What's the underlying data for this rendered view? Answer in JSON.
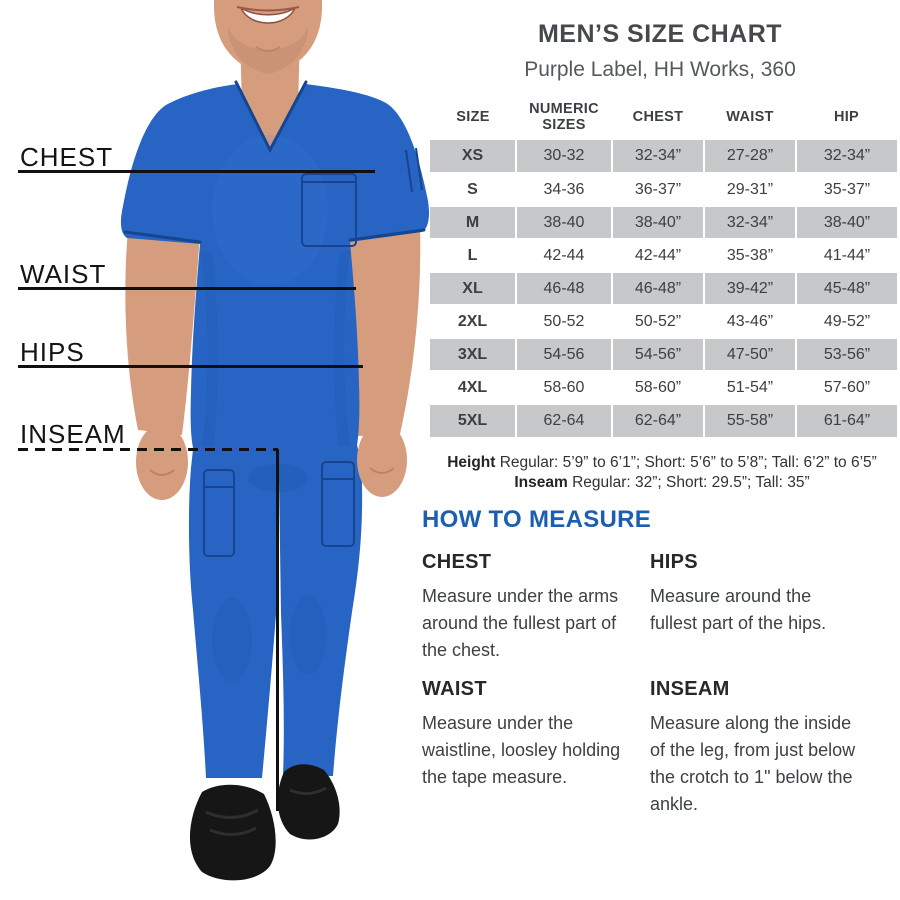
{
  "page": {
    "title": "MEN’S SIZE CHART",
    "subtitle": "Purple Label, HH Works, 360"
  },
  "measurement_labels": {
    "chest": "CHEST",
    "waist": "WAIST",
    "hips": "HIPS",
    "inseam": "INSEAM"
  },
  "size_table": {
    "columns": [
      "SIZE",
      "NUMERIC SIZES",
      "CHEST",
      "WAIST",
      "HIP"
    ],
    "rows": [
      [
        "XS",
        "30-32",
        "32-34”",
        "27-28”",
        "32-34”"
      ],
      [
        "S",
        "34-36",
        "36-37”",
        "29-31”",
        "35-37”"
      ],
      [
        "M",
        "38-40",
        "38-40”",
        "32-34”",
        "38-40”"
      ],
      [
        "L",
        "42-44",
        "42-44”",
        "35-38”",
        "41-44”"
      ],
      [
        "XL",
        "46-48",
        "46-48”",
        "39-42”",
        "45-48”"
      ],
      [
        "2XL",
        "50-52",
        "50-52”",
        "43-46”",
        "49-52”"
      ],
      [
        "3XL",
        "54-56",
        "54-56”",
        "47-50”",
        "53-56”"
      ],
      [
        "4XL",
        "58-60",
        "58-60”",
        "51-54”",
        "57-60”"
      ],
      [
        "5XL",
        "62-64",
        "62-64”",
        "55-58”",
        "61-64”"
      ]
    ]
  },
  "fit_notes": {
    "height_label": "Height",
    "height_text": " Regular: 5’9” to 6’1”; Short: 5’6” to 5’8”; Tall: 6’2” to 6’5”",
    "inseam_label": "Inseam",
    "inseam_text": " Regular: 32”;  Short: 29.5”; Tall: 35”"
  },
  "how_to_measure": {
    "heading": "HOW TO MEASURE",
    "items": [
      {
        "title": "CHEST",
        "text": "Measure under the arms around the fullest part of the chest."
      },
      {
        "title": "HIPS",
        "text": "Measure around the fullest part of the hips."
      },
      {
        "title": "WAIST",
        "text": "Measure under the waistline, loosley holding the tape measure."
      },
      {
        "title": "INSEAM",
        "text": "Measure along the inside of the leg, from just below the crotch to 1\" below the ankle."
      }
    ]
  },
  "colors": {
    "scrub_blue": "#2764c4",
    "shade_blue": "#1a4fa0",
    "stitch_blue": "#17458f",
    "skin": "#d69c7e",
    "skin_shadow": "#bd825f",
    "shoe_black": "#161616",
    "row_gray": "#c6c8ca",
    "heading_blue": "#1d5fae",
    "text_dark": "#3c4044",
    "title_gray": "#45494e",
    "subtitle_gray": "#55595d",
    "note_gray": "#2f3338",
    "label_black": "#141414",
    "line_black": "#101010"
  }
}
